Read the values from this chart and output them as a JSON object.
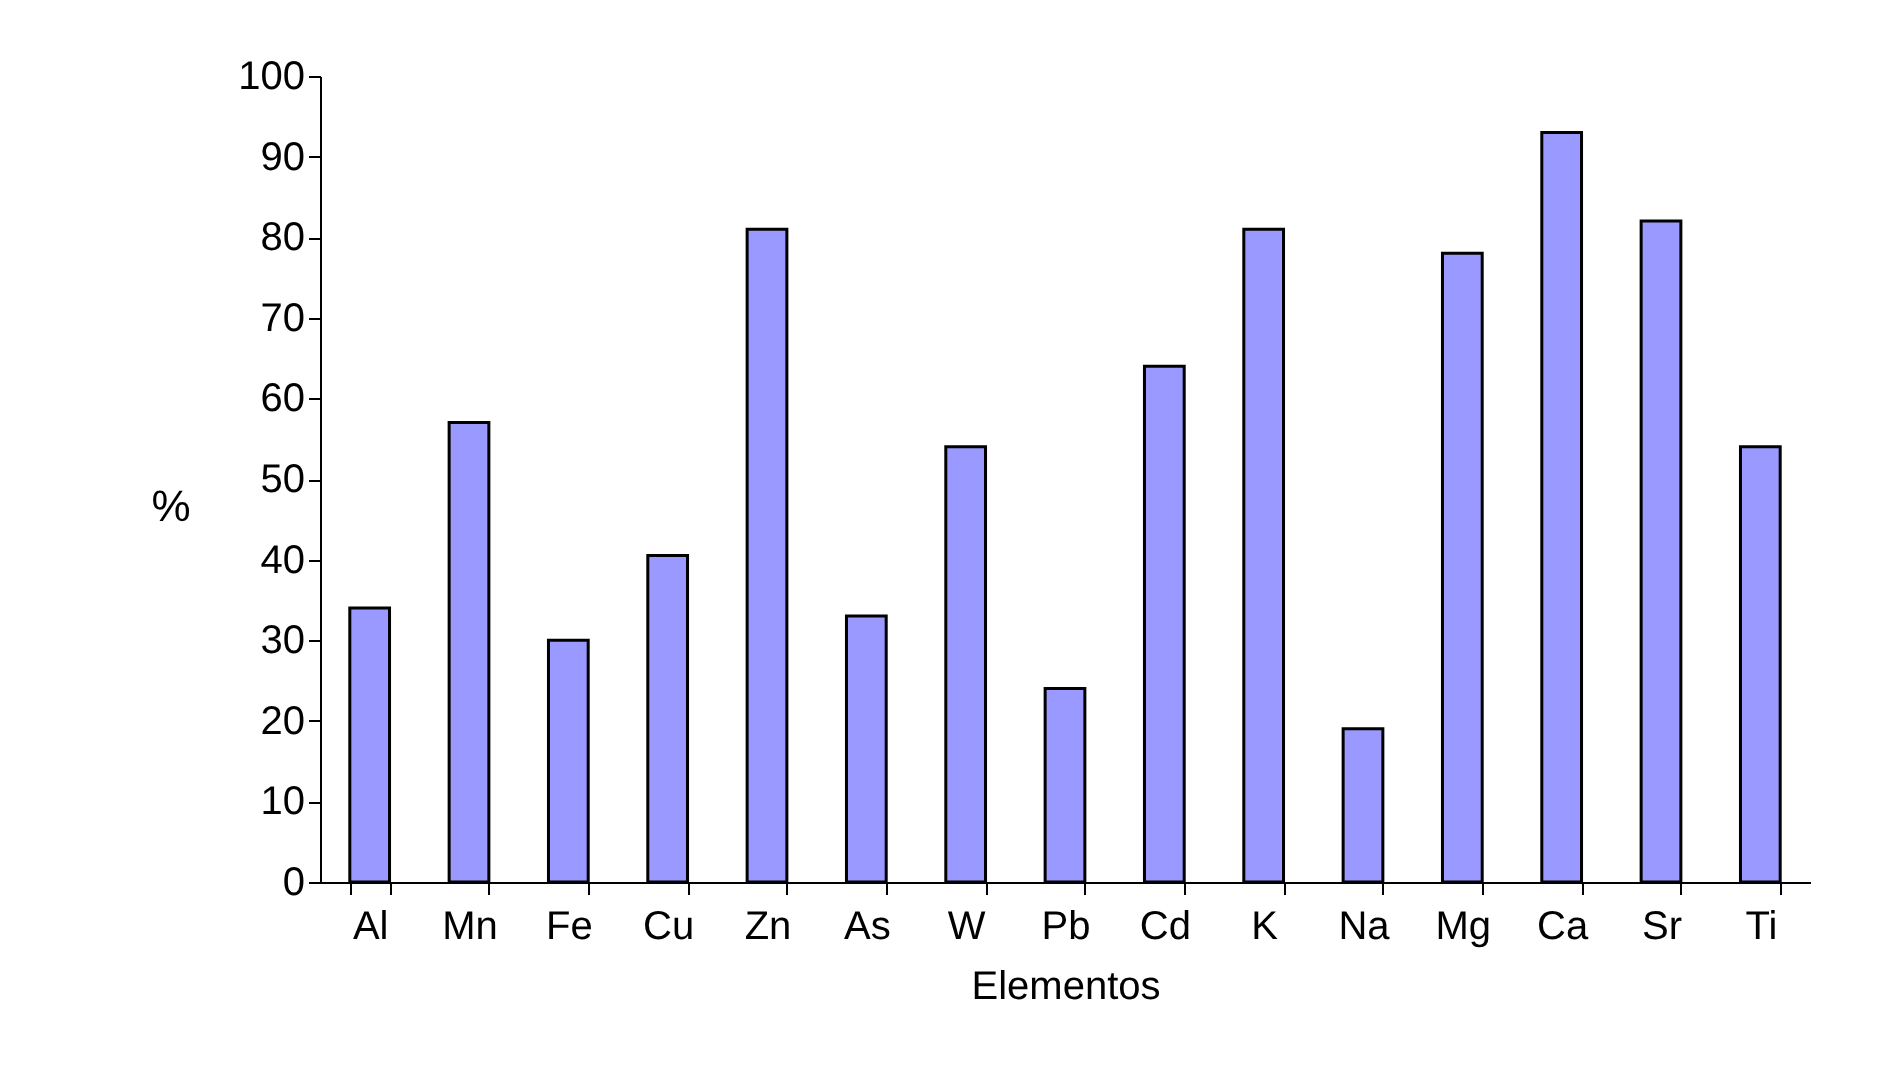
{
  "chart_data": {
    "type": "bar",
    "xlabel": "Elementos",
    "ylabel": "%",
    "categories": [
      "Al",
      "Mn",
      "Fe",
      "Cu",
      "Zn",
      "As",
      "W",
      "Pb",
      "Cd",
      "K",
      "Na",
      "Mg",
      "Ca",
      "Sr",
      "Ti"
    ],
    "values": [
      34,
      57,
      30,
      40.5,
      81,
      33,
      54,
      24,
      64,
      81,
      19,
      78,
      93,
      82,
      54
    ],
    "color": "#9999ff",
    "ylim": [
      0,
      100
    ],
    "yticks": [
      0,
      10,
      20,
      30,
      40,
      50,
      60,
      70,
      80,
      90,
      100
    ],
    "grid": false
  }
}
